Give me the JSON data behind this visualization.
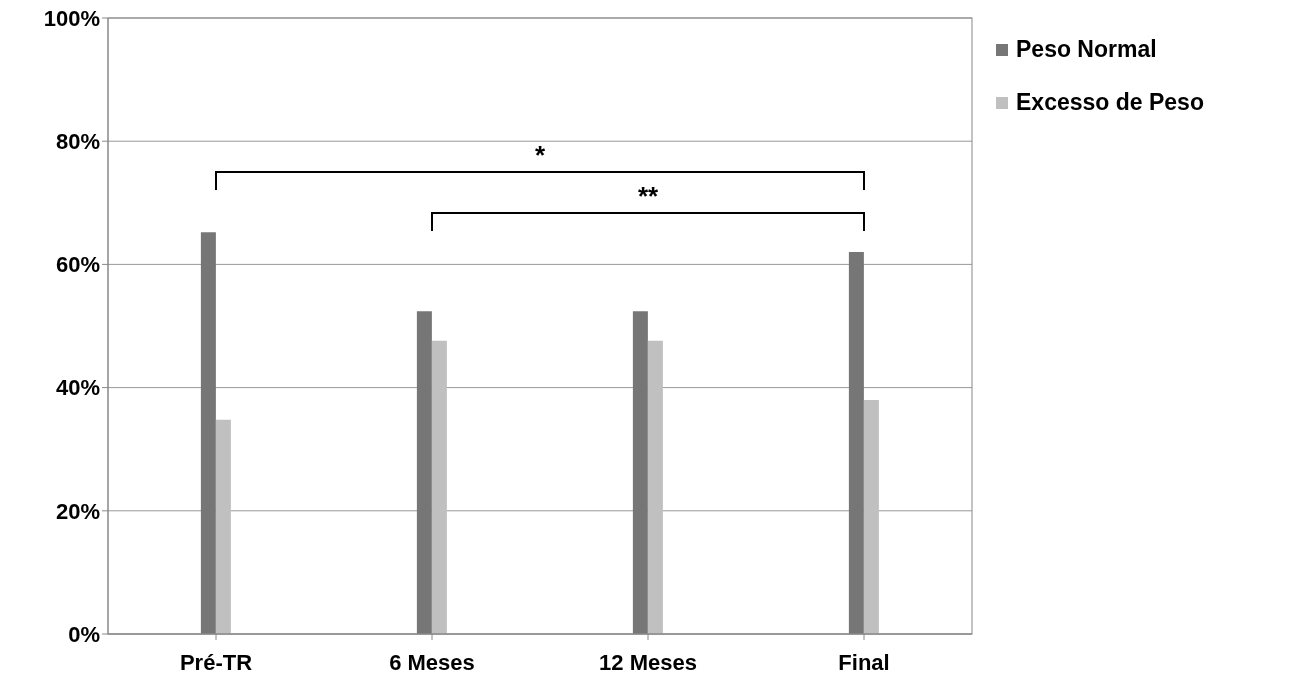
{
  "chart_data": {
    "type": "bar",
    "categories": [
      "Pré-TR",
      "6 Meses",
      "12 Meses",
      "Final"
    ],
    "series": [
      {
        "name": "Peso Normal",
        "color": "#767676",
        "values": [
          65.2,
          52.4,
          52.4,
          62
        ]
      },
      {
        "name": "Excesso de Peso",
        "color": "#c0c0c0",
        "values": [
          34.8,
          47.6,
          47.6,
          38
        ]
      }
    ],
    "ylim": [
      0,
      100
    ],
    "yticks": [
      {
        "value": 0,
        "label": "0%"
      },
      {
        "value": 20,
        "label": "20%"
      },
      {
        "value": 40,
        "label": "40%"
      },
      {
        "value": 60,
        "label": "60%"
      },
      {
        "value": 80,
        "label": "80%"
      },
      {
        "value": 100,
        "label": "100%"
      }
    ],
    "grid": "y",
    "legend": "top right",
    "annotations": [
      "*",
      "**"
    ]
  }
}
